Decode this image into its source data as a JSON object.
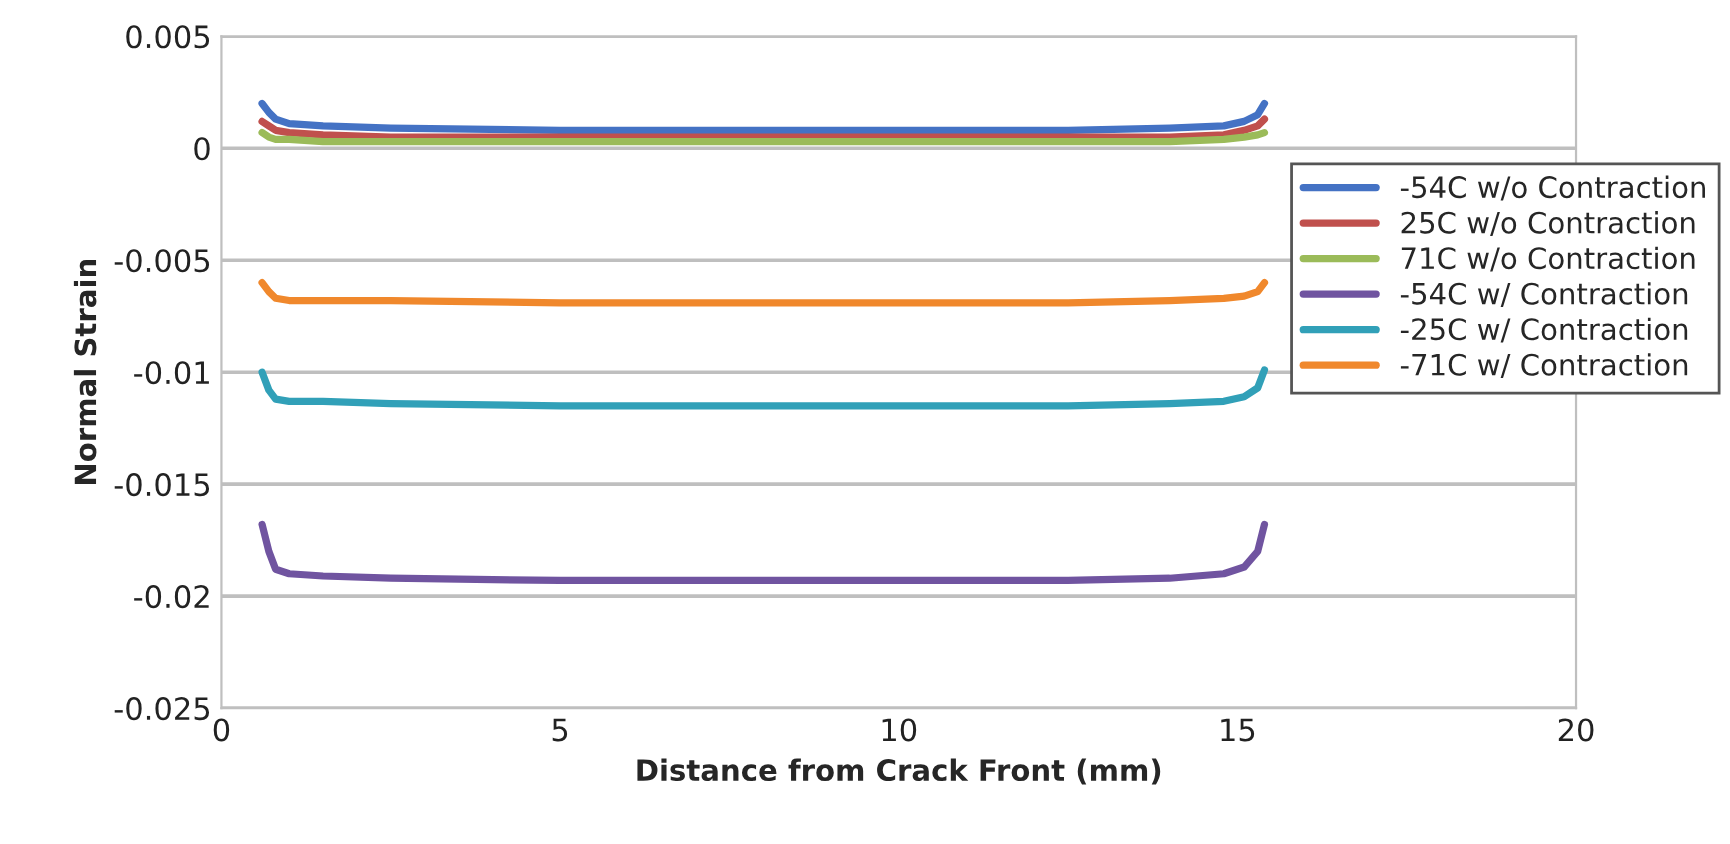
{
  "chart_data": {
    "type": "line",
    "xlabel": "Distance from Crack Front (mm)",
    "ylabel": "Normal Strain",
    "x": [
      0.6,
      0.7,
      0.8,
      1.0,
      1.5,
      2.5,
      5,
      7.5,
      10,
      12.5,
      14,
      14.8,
      15.1,
      15.3,
      15.4
    ],
    "series": [
      {
        "name": "-54C w/o Contraction",
        "color": "#4472c4",
        "values": [
          0.002,
          0.0016,
          0.0013,
          0.0011,
          0.001,
          0.0009,
          0.0008,
          0.0008,
          0.0008,
          0.0008,
          0.0009,
          0.001,
          0.0012,
          0.0015,
          0.002
        ]
      },
      {
        "name": "25C w/o Contraction",
        "color": "#c0504d",
        "values": [
          0.0012,
          0.001,
          0.0008,
          0.0007,
          0.0006,
          0.0005,
          0.0005,
          0.0005,
          0.0005,
          0.0005,
          0.0005,
          0.0006,
          0.0008,
          0.001,
          0.0013
        ]
      },
      {
        "name": "71C w/o Contraction",
        "color": "#9bbb59",
        "values": [
          0.0007,
          0.0005,
          0.0004,
          0.0004,
          0.0003,
          0.0003,
          0.0003,
          0.0003,
          0.0003,
          0.0003,
          0.0003,
          0.0004,
          0.0005,
          0.0006,
          0.0007
        ]
      },
      {
        "name": "-54C w/ Contraction",
        "color": "#7054a0",
        "values": [
          -0.0168,
          -0.018,
          -0.0188,
          -0.019,
          -0.0191,
          -0.0192,
          -0.0193,
          -0.0193,
          -0.0193,
          -0.0193,
          -0.0192,
          -0.019,
          -0.0187,
          -0.018,
          -0.0168
        ]
      },
      {
        "name": "-25C w/ Contraction",
        "color": "#31a0b8",
        "values": [
          -0.01,
          -0.0108,
          -0.0112,
          -0.0113,
          -0.0113,
          -0.0114,
          -0.0115,
          -0.0115,
          -0.0115,
          -0.0115,
          -0.0114,
          -0.0113,
          -0.0111,
          -0.0107,
          -0.0099
        ]
      },
      {
        "name": "-71C w/ Contraction",
        "color": "#f0882c",
        "values": [
          -0.006,
          -0.0064,
          -0.0067,
          -0.0068,
          -0.0068,
          -0.0068,
          -0.0069,
          -0.0069,
          -0.0069,
          -0.0069,
          -0.0068,
          -0.0067,
          -0.0066,
          -0.0064,
          -0.006
        ]
      }
    ],
    "xlim": [
      0,
      20
    ],
    "xticks": [
      0,
      5,
      10,
      15,
      20
    ],
    "ylim": [
      -0.025,
      0.005
    ],
    "yticks": [
      -0.025,
      -0.02,
      -0.015,
      -0.01,
      -0.005,
      0,
      0.005
    ],
    "grid": "y",
    "legend": "right",
    "marker": "none",
    "line_style": "solid"
  }
}
